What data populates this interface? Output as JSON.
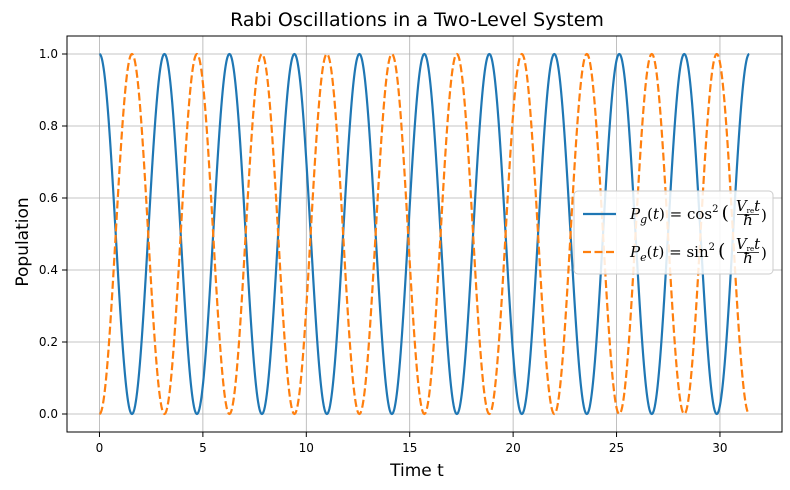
{
  "chart_data": {
    "type": "line",
    "title": "Rabi Oscillations in a Two-Level System",
    "xlabel": "Time t",
    "ylabel": "Population",
    "xlim": [
      -1.57,
      33.0
    ],
    "ylim": [
      -0.05,
      1.05
    ],
    "xticks": [
      0,
      5,
      10,
      15,
      20,
      25,
      30
    ],
    "yticks": [
      0.0,
      0.2,
      0.4,
      0.6,
      0.8,
      1.0
    ],
    "xtick_labels": [
      "0",
      "5",
      "10",
      "15",
      "20",
      "25",
      "30"
    ],
    "ytick_labels": [
      "0.0",
      "0.2",
      "0.4",
      "0.6",
      "0.8",
      "1.0"
    ],
    "grid": true,
    "legend_position": "center-right",
    "x_range": [
      0,
      31.4159
    ],
    "rabi_frequency": 1.0,
    "series": [
      {
        "name": "P_g(t) = cos²(V_re t / ħ)",
        "function": "cos2",
        "color": "#1f77b4",
        "style": "solid"
      },
      {
        "name": "P_e(t) = sin²(V_re t / ħ)",
        "function": "sin2",
        "color": "#ff7f0e",
        "style": "dashed"
      }
    ]
  }
}
